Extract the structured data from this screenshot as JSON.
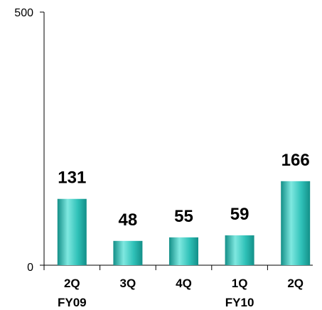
{
  "chart_data": {
    "type": "bar",
    "categories": [
      "2Q",
      "3Q",
      "4Q",
      "1Q",
      "2Q"
    ],
    "values": [
      131,
      48,
      55,
      59,
      166
    ],
    "data_labels": [
      "131",
      "48",
      "55",
      "59",
      "166"
    ],
    "ylim": [
      0,
      500
    ],
    "yticks": [
      "0",
      "500"
    ],
    "group_labels": [
      {
        "label": "FY09",
        "category_index": 0
      },
      {
        "label": "FY10",
        "category_index": 3
      }
    ],
    "grid": false,
    "legend": "none",
    "colors": {
      "bar_light": "#7fe8e0",
      "bar_mid": "#2fc1b8",
      "bar_dark": "#138f88",
      "axis": "#000000"
    }
  }
}
